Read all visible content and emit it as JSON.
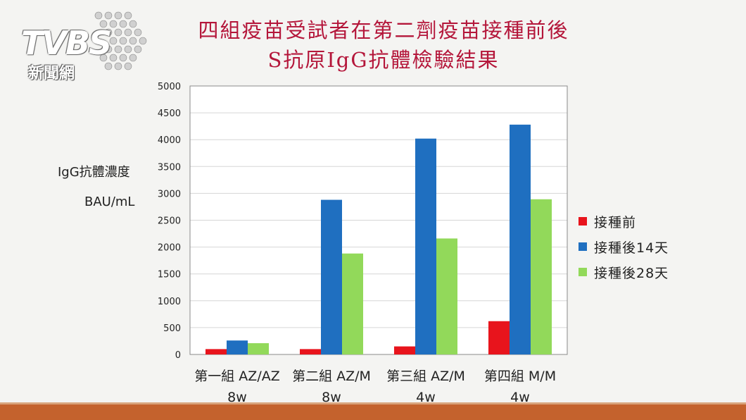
{
  "logo": {
    "main": "TVBS",
    "sub": "新聞網"
  },
  "title": {
    "line1": "四組疫苗受試者在第二劑疫苗接種前後",
    "line2": "S抗原IgG抗體檢驗結果"
  },
  "colors": {
    "title": "#b4163a",
    "footer": "#c4622d"
  },
  "chart_data": {
    "type": "bar",
    "categories": [
      [
        "第一組 AZ/AZ",
        "8w"
      ],
      [
        "第二組 AZ/M",
        "8w"
      ],
      [
        "第三組 AZ/M",
        "4w"
      ],
      [
        "第四組  M/M",
        "4w"
      ]
    ],
    "series": [
      {
        "name": "接種前",
        "color": "#e8141c",
        "values": [
          100,
          100,
          150,
          620
        ]
      },
      {
        "name": "接種後14天",
        "color": "#1f6fc0",
        "values": [
          260,
          2880,
          4020,
          4280
        ]
      },
      {
        "name": "接種後28天",
        "color": "#92d95a",
        "values": [
          210,
          1880,
          2160,
          2890
        ]
      }
    ],
    "ylabel": [
      "IgG抗體濃度",
      "BAU/mL"
    ],
    "ylim": [
      0,
      5000
    ],
    "yticks": [
      "0",
      "500",
      "1000",
      "1500",
      "2000",
      "2500",
      "3000",
      "3500",
      "4000",
      "4500",
      "5000"
    ],
    "grid": true,
    "legend": "right"
  }
}
